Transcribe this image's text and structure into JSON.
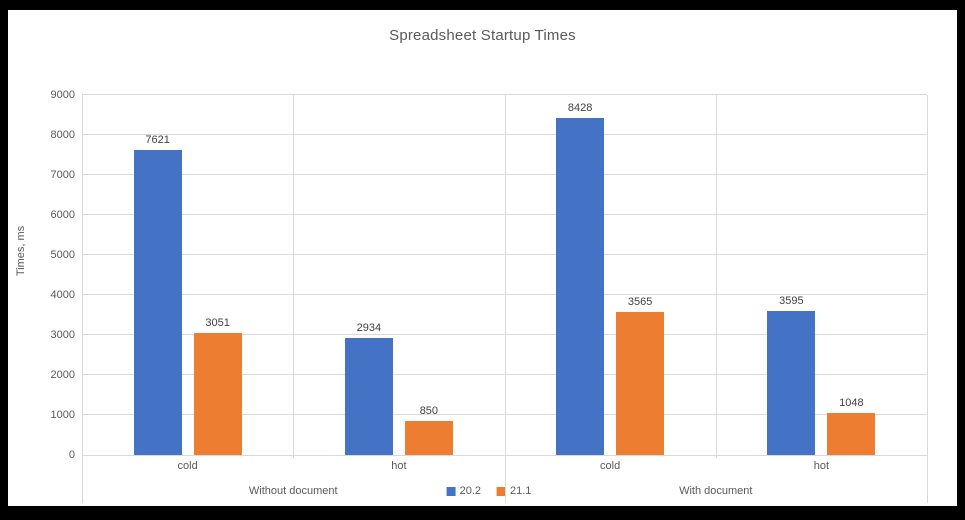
{
  "window": {
    "frame_color": "#000000",
    "background": "#FFFFFF"
  },
  "chart_data": {
    "type": "bar",
    "title": "Spreadsheet Startup Times",
    "ylabel": "Times, ms",
    "xlabel": "",
    "ylim": [
      0,
      9000
    ],
    "ytick_step": 1000,
    "grid": true,
    "data_labels": true,
    "legend_position": "bottom-center",
    "group_labels": [
      "Without document",
      "With document"
    ],
    "categories": [
      {
        "group": "Without document",
        "label": "cold"
      },
      {
        "group": "Without document",
        "label": "hot"
      },
      {
        "group": "With document",
        "label": "cold"
      },
      {
        "group": "With document",
        "label": "hot"
      }
    ],
    "series": [
      {
        "name": "20.2",
        "color": "#4472C4",
        "values": [
          7621,
          2934,
          8428,
          3595
        ]
      },
      {
        "name": "21.1",
        "color": "#ED7D31",
        "values": [
          3051,
          850,
          3565,
          1048
        ]
      }
    ],
    "colors": {
      "gridline": "#D9D9D9",
      "axis_line": "#D9D9D9",
      "title_text": "#595959",
      "axis_text": "#595959",
      "data_label_text": "#404040"
    }
  }
}
